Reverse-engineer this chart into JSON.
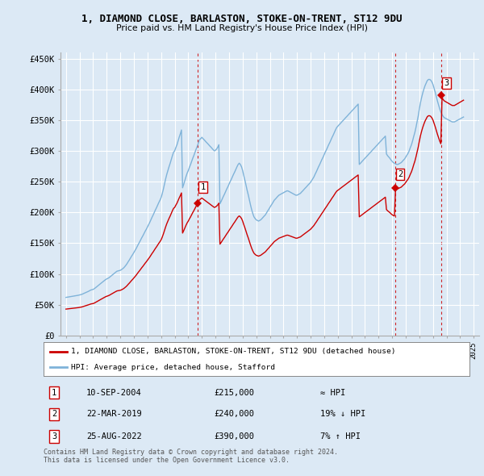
{
  "title": "1, DIAMOND CLOSE, BARLASTON, STOKE-ON-TRENT, ST12 9DU",
  "subtitle": "Price paid vs. HM Land Registry's House Price Index (HPI)",
  "ylim": [
    0,
    460000
  ],
  "yticks": [
    0,
    50000,
    100000,
    150000,
    200000,
    250000,
    300000,
    350000,
    400000,
    450000
  ],
  "ytick_labels": [
    "£0",
    "£50K",
    "£100K",
    "£150K",
    "£200K",
    "£250K",
    "£300K",
    "£350K",
    "£400K",
    "£450K"
  ],
  "background_color": "#dce9f5",
  "grid_color": "#ffffff",
  "sale_color": "#cc0000",
  "hpi_color": "#7fb3d9",
  "legend_box_color": "#ffffff",
  "sale_label": "1, DIAMOND CLOSE, BARLASTON, STOKE-ON-TRENT, ST12 9DU (detached house)",
  "hpi_label": "HPI: Average price, detached house, Stafford",
  "transactions": [
    {
      "num": 1,
      "date": "10-SEP-2004",
      "price": 215000,
      "rel": "≈ HPI",
      "year": 2004.7
    },
    {
      "num": 2,
      "date": "22-MAR-2019",
      "price": 240000,
      "rel": "19% ↓ HPI",
      "year": 2019.2
    },
    {
      "num": 3,
      "date": "25-AUG-2022",
      "price": 390000,
      "rel": "7% ↑ HPI",
      "year": 2022.6
    }
  ],
  "copyright_text": "Contains HM Land Registry data © Crown copyright and database right 2024.\nThis data is licensed under the Open Government Licence v3.0.",
  "hpi_data": {
    "years": [
      1995.0,
      1995.08,
      1995.17,
      1995.25,
      1995.33,
      1995.42,
      1995.5,
      1995.58,
      1995.67,
      1995.75,
      1995.83,
      1995.92,
      1996.0,
      1996.08,
      1996.17,
      1996.25,
      1996.33,
      1996.42,
      1996.5,
      1996.58,
      1996.67,
      1996.75,
      1996.83,
      1996.92,
      1997.0,
      1997.08,
      1997.17,
      1997.25,
      1997.33,
      1997.42,
      1997.5,
      1997.58,
      1997.67,
      1997.75,
      1997.83,
      1997.92,
      1998.0,
      1998.08,
      1998.17,
      1998.25,
      1998.33,
      1998.42,
      1998.5,
      1998.58,
      1998.67,
      1998.75,
      1998.83,
      1998.92,
      1999.0,
      1999.08,
      1999.17,
      1999.25,
      1999.33,
      1999.42,
      1999.5,
      1999.58,
      1999.67,
      1999.75,
      1999.83,
      1999.92,
      2000.0,
      2000.08,
      2000.17,
      2000.25,
      2000.33,
      2000.42,
      2000.5,
      2000.58,
      2000.67,
      2000.75,
      2000.83,
      2000.92,
      2001.0,
      2001.08,
      2001.17,
      2001.25,
      2001.33,
      2001.42,
      2001.5,
      2001.58,
      2001.67,
      2001.75,
      2001.83,
      2001.92,
      2002.0,
      2002.08,
      2002.17,
      2002.25,
      2002.33,
      2002.42,
      2002.5,
      2002.58,
      2002.67,
      2002.75,
      2002.83,
      2002.92,
      2003.0,
      2003.08,
      2003.17,
      2003.25,
      2003.33,
      2003.42,
      2003.5,
      2003.58,
      2003.67,
      2003.75,
      2003.83,
      2003.92,
      2004.0,
      2004.08,
      2004.17,
      2004.25,
      2004.33,
      2004.42,
      2004.5,
      2004.58,
      2004.67,
      2004.75,
      2004.83,
      2004.92,
      2005.0,
      2005.08,
      2005.17,
      2005.25,
      2005.33,
      2005.42,
      2005.5,
      2005.58,
      2005.67,
      2005.75,
      2005.83,
      2005.92,
      2006.0,
      2006.08,
      2006.17,
      2006.25,
      2006.33,
      2006.42,
      2006.5,
      2006.58,
      2006.67,
      2006.75,
      2006.83,
      2006.92,
      2007.0,
      2007.08,
      2007.17,
      2007.25,
      2007.33,
      2007.42,
      2007.5,
      2007.58,
      2007.67,
      2007.75,
      2007.83,
      2007.92,
      2008.0,
      2008.08,
      2008.17,
      2008.25,
      2008.33,
      2008.42,
      2008.5,
      2008.58,
      2008.67,
      2008.75,
      2008.83,
      2008.92,
      2009.0,
      2009.08,
      2009.17,
      2009.25,
      2009.33,
      2009.42,
      2009.5,
      2009.58,
      2009.67,
      2009.75,
      2009.83,
      2009.92,
      2010.0,
      2010.08,
      2010.17,
      2010.25,
      2010.33,
      2010.42,
      2010.5,
      2010.58,
      2010.67,
      2010.75,
      2010.83,
      2010.92,
      2011.0,
      2011.08,
      2011.17,
      2011.25,
      2011.33,
      2011.42,
      2011.5,
      2011.58,
      2011.67,
      2011.75,
      2011.83,
      2011.92,
      2012.0,
      2012.08,
      2012.17,
      2012.25,
      2012.33,
      2012.42,
      2012.5,
      2012.58,
      2012.67,
      2012.75,
      2012.83,
      2012.92,
      2013.0,
      2013.08,
      2013.17,
      2013.25,
      2013.33,
      2013.42,
      2013.5,
      2013.58,
      2013.67,
      2013.75,
      2013.83,
      2013.92,
      2014.0,
      2014.08,
      2014.17,
      2014.25,
      2014.33,
      2014.42,
      2014.5,
      2014.58,
      2014.67,
      2014.75,
      2014.83,
      2014.92,
      2015.0,
      2015.08,
      2015.17,
      2015.25,
      2015.33,
      2015.42,
      2015.5,
      2015.58,
      2015.67,
      2015.75,
      2015.83,
      2015.92,
      2016.0,
      2016.08,
      2016.17,
      2016.25,
      2016.33,
      2016.42,
      2016.5,
      2016.58,
      2016.67,
      2016.75,
      2016.83,
      2016.92,
      2017.0,
      2017.08,
      2017.17,
      2017.25,
      2017.33,
      2017.42,
      2017.5,
      2017.58,
      2017.67,
      2017.75,
      2017.83,
      2017.92,
      2018.0,
      2018.08,
      2018.17,
      2018.25,
      2018.33,
      2018.42,
      2018.5,
      2018.58,
      2018.67,
      2018.75,
      2018.83,
      2018.92,
      2019.0,
      2019.08,
      2019.17,
      2019.25,
      2019.33,
      2019.42,
      2019.5,
      2019.58,
      2019.67,
      2019.75,
      2019.83,
      2019.92,
      2020.0,
      2020.08,
      2020.17,
      2020.25,
      2020.33,
      2020.42,
      2020.5,
      2020.58,
      2020.67,
      2020.75,
      2020.83,
      2020.92,
      2021.0,
      2021.08,
      2021.17,
      2021.25,
      2021.33,
      2021.42,
      2021.5,
      2021.58,
      2021.67,
      2021.75,
      2021.83,
      2021.92,
      2022.0,
      2022.08,
      2022.17,
      2022.25,
      2022.33,
      2022.42,
      2022.5,
      2022.58,
      2022.67,
      2022.75,
      2022.83,
      2022.92,
      2023.0,
      2023.08,
      2023.17,
      2023.25,
      2023.33,
      2023.42,
      2023.5,
      2023.58,
      2023.67,
      2023.75,
      2023.83,
      2023.92,
      2024.0,
      2024.08,
      2024.17,
      2024.25
    ],
    "values": [
      62000,
      62300,
      62600,
      62900,
      63200,
      63500,
      63800,
      64100,
      64400,
      64700,
      65000,
      65500,
      66000,
      66500,
      67000,
      67800,
      68600,
      69400,
      70200,
      71000,
      72000,
      73000,
      74000,
      74500,
      75000,
      76000,
      77500,
      79000,
      80500,
      82000,
      83500,
      85000,
      86500,
      88000,
      89500,
      91000,
      92000,
      93000,
      94000,
      95500,
      97000,
      98500,
      100000,
      101500,
      103000,
      104500,
      105000,
      105500,
      106000,
      107000,
      108500,
      110000,
      112000,
      114500,
      117000,
      120000,
      123000,
      126000,
      129000,
      132000,
      135000,
      138000,
      141500,
      145000,
      148500,
      152000,
      155500,
      159000,
      162500,
      166000,
      169500,
      173000,
      176500,
      180000,
      184000,
      188000,
      192000,
      196000,
      200000,
      204000,
      208000,
      212000,
      216000,
      220000,
      224000,
      230000,
      238000,
      246000,
      254000,
      262000,
      268000,
      274000,
      280000,
      286000,
      292000,
      298000,
      300000,
      305000,
      310000,
      316000,
      322000,
      328000,
      334000,
      240000,
      246000,
      252000,
      258000,
      264000,
      268000,
      273000,
      278000,
      283000,
      288000,
      293000,
      298000,
      303000,
      308000,
      313000,
      318000,
      320000,
      322000,
      320000,
      318000,
      316000,
      314000,
      312000,
      310000,
      308000,
      306000,
      304000,
      302000,
      300000,
      301000,
      303000,
      306000,
      310000,
      214000,
      218000,
      222000,
      226000,
      230000,
      234000,
      238000,
      242000,
      246000,
      250000,
      254000,
      258000,
      262000,
      266000,
      270000,
      274000,
      278000,
      280000,
      278000,
      274000,
      268000,
      260000,
      252000,
      244000,
      236000,
      228000,
      220000,
      212000,
      204000,
      198000,
      193000,
      190000,
      188000,
      187000,
      186000,
      187000,
      188000,
      190000,
      192000,
      194000,
      196000,
      199000,
      202000,
      205000,
      208000,
      211000,
      214000,
      217000,
      220000,
      222000,
      224000,
      226000,
      228000,
      229000,
      230000,
      231000,
      232000,
      233000,
      234000,
      235000,
      235000,
      234000,
      233000,
      232000,
      231000,
      230000,
      229000,
      228000,
      228000,
      229000,
      230000,
      231000,
      233000,
      235000,
      237000,
      239000,
      241000,
      243000,
      245000,
      247000,
      249000,
      252000,
      255000,
      258000,
      262000,
      266000,
      270000,
      274000,
      278000,
      282000,
      286000,
      290000,
      294000,
      298000,
      302000,
      306000,
      310000,
      314000,
      318000,
      322000,
      326000,
      330000,
      334000,
      338000,
      340000,
      342000,
      344000,
      346000,
      348000,
      350000,
      352000,
      354000,
      356000,
      358000,
      360000,
      362000,
      364000,
      366000,
      368000,
      370000,
      372000,
      374000,
      376000,
      278000,
      280000,
      282000,
      284000,
      286000,
      288000,
      290000,
      292000,
      294000,
      296000,
      298000,
      300000,
      302000,
      304000,
      306000,
      308000,
      310000,
      312000,
      314000,
      316000,
      318000,
      320000,
      322000,
      324000,
      295000,
      292000,
      290000,
      288000,
      285000,
      283000,
      281000,
      280000,
      279000,
      278000,
      278000,
      279000,
      280000,
      281000,
      283000,
      285000,
      287000,
      290000,
      293000,
      296000,
      300000,
      305000,
      310000,
      316000,
      323000,
      330000,
      338000,
      347000,
      357000,
      368000,
      378000,
      387000,
      394000,
      400000,
      406000,
      410000,
      414000,
      416000,
      416000,
      415000,
      412000,
      408000,
      402000,
      395000,
      388000,
      381000,
      374000,
      368000,
      363000,
      359000,
      356000,
      354000,
      353000,
      352000,
      351000,
      350000,
      349000,
      348000,
      347000,
      347000,
      347000,
      348000,
      349000,
      350000,
      351000,
      352000,
      353000,
      354000,
      355000
    ]
  }
}
